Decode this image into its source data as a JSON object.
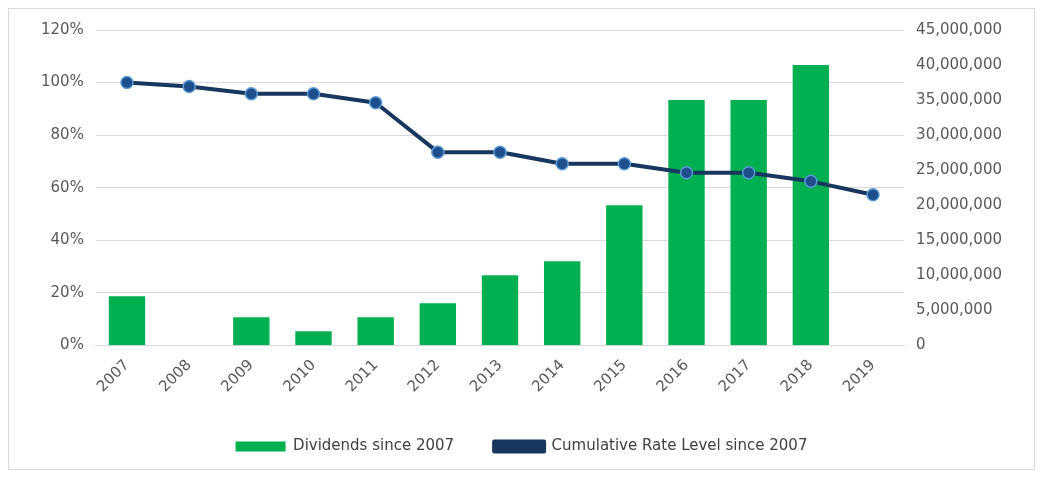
{
  "chart_data": {
    "type": "bar",
    "categories": [
      "2007",
      "2008",
      "2009",
      "2010",
      "2011",
      "2012",
      "2013",
      "2014",
      "2015",
      "2016",
      "2017",
      "2018",
      "2019"
    ],
    "series": [
      {
        "name": "Dividends since 2007",
        "axis": "y2",
        "color": "#00b050",
        "values": [
          7000000,
          null,
          4000000,
          2000000,
          4000000,
          6000000,
          10000000,
          12000000,
          20000000,
          35000000,
          35000000,
          40000000,
          null
        ]
      },
      {
        "name": "Cumulative Rate Level since 2007",
        "type": "line",
        "axis": "y",
        "color": "#17375e",
        "marker": "circle",
        "values": [
          100,
          98.5,
          95.7,
          95.7,
          92.3,
          73.5,
          73.5,
          69.1,
          69.1,
          65.7,
          65.7,
          62.4,
          57.3
        ]
      }
    ],
    "ylim": [
      0,
      120
    ],
    "yticks": [
      {
        "value": 0,
        "label": "0%"
      },
      {
        "value": 20,
        "label": "20%"
      },
      {
        "value": 40,
        "label": "40%"
      },
      {
        "value": 60,
        "label": "60%"
      },
      {
        "value": 80,
        "label": "80%"
      },
      {
        "value": 100,
        "label": "100%"
      },
      {
        "value": 120,
        "label": "120%"
      }
    ],
    "y2lim": [
      0,
      45000000
    ],
    "y2ticks": [
      {
        "value": 0,
        "label": "0"
      },
      {
        "value": 5000000,
        "label": "5,000,000"
      },
      {
        "value": 10000000,
        "label": "10,000,000"
      },
      {
        "value": 15000000,
        "label": "15,000,000"
      },
      {
        "value": 20000000,
        "label": "20,000,000"
      },
      {
        "value": 25000000,
        "label": "25,000,000"
      },
      {
        "value": 30000000,
        "label": "30,000,000"
      },
      {
        "value": 35000000,
        "label": "35,000,000"
      },
      {
        "value": 40000000,
        "label": "40,000,000"
      },
      {
        "value": 45000000,
        "label": "45,000,000"
      }
    ],
    "grid": "y",
    "legend": "bottom"
  }
}
